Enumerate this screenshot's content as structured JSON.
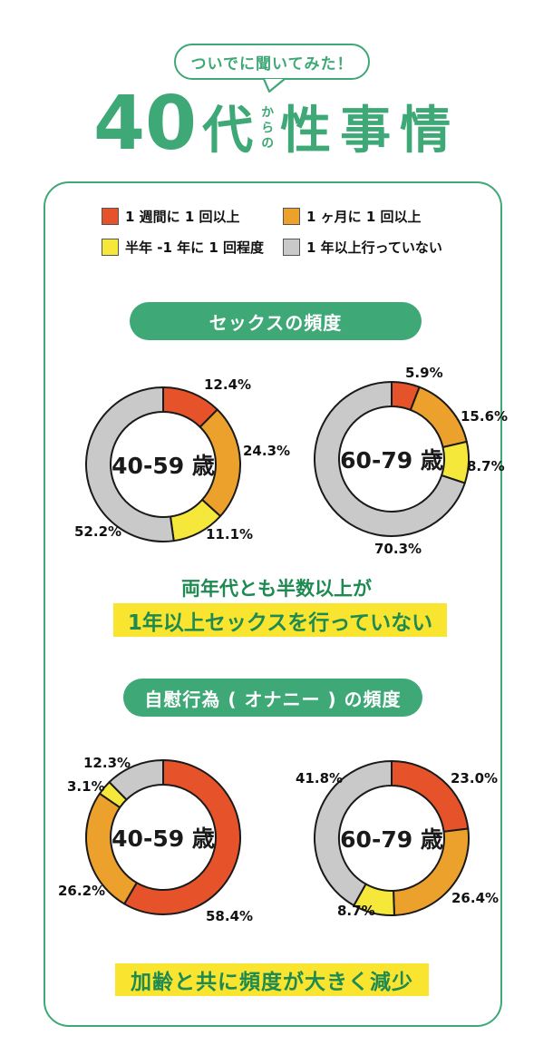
{
  "header": {
    "bubble": "ついでに聞いてみた！",
    "title": {
      "num": "40",
      "dai": "代",
      "karano": "からの",
      "main": "性事情"
    }
  },
  "legend": {
    "items": [
      {
        "label": "1 週間に 1 回以上",
        "color": "#e6532b"
      },
      {
        "label": "1 ヶ月に 1 回以上",
        "color": "#eda12d"
      },
      {
        "label": "半年 -1 年に 1 回程度",
        "color": "#f6e83b"
      },
      {
        "label": "1 年以上行っていない",
        "color": "#c9c9c9"
      }
    ]
  },
  "sections": [
    {
      "pill": "セックスの頻度"
    },
    {
      "pill": "自慰行為 ( オナニー ) の頻度"
    }
  ],
  "conclusions": [
    {
      "line1": "両年代とも半数以上が",
      "line2": "1年以上セックスを行っていない"
    },
    {
      "line1": "加齢と共に頻度が大きく減少"
    }
  ],
  "chart_data": [
    {
      "type": "pie",
      "variant": "donut",
      "title": "セックスの頻度",
      "center_label": "40-59 歳",
      "categories": [
        "1週間に1回以上",
        "1ヶ月に1回以上",
        "半年-1年に1回程度",
        "1年以上行っていない"
      ],
      "values": [
        12.4,
        24.3,
        11.1,
        52.2
      ],
      "labels": [
        "12.4%",
        "24.3%",
        "11.1%",
        "52.2%"
      ],
      "colors": [
        "#e6532b",
        "#eda12d",
        "#f6e83b",
        "#c9c9c9"
      ]
    },
    {
      "type": "pie",
      "variant": "donut",
      "title": "セックスの頻度",
      "center_label": "60-79 歳",
      "categories": [
        "1週間に1回以上",
        "1ヶ月に1回以上",
        "半年-1年に1回程度",
        "1年以上行っていない"
      ],
      "values": [
        5.9,
        15.6,
        8.7,
        70.3
      ],
      "labels": [
        "5.9%",
        "15.6%",
        "8.7%",
        "70.3%"
      ],
      "colors": [
        "#e6532b",
        "#eda12d",
        "#f6e83b",
        "#c9c9c9"
      ]
    },
    {
      "type": "pie",
      "variant": "donut",
      "title": "自慰行為 ( オナニー ) の頻度",
      "center_label": "40-59 歳",
      "categories": [
        "1週間に1回以上",
        "1ヶ月に1回以上",
        "半年-1年に1回程度",
        "1年以上行っていない"
      ],
      "values": [
        58.4,
        26.2,
        3.1,
        12.3
      ],
      "labels": [
        "58.4%",
        "26.2%",
        "3.1%",
        "12.3%"
      ],
      "colors": [
        "#e6532b",
        "#eda12d",
        "#f6e83b",
        "#c9c9c9"
      ]
    },
    {
      "type": "pie",
      "variant": "donut",
      "title": "自慰行為 ( オナニー ) の頻度",
      "center_label": "60-79 歳",
      "categories": [
        "1週間に1回以上",
        "1ヶ月に1回以上",
        "半年-1年に1回程度",
        "1年以上行っていない"
      ],
      "values": [
        23.0,
        26.4,
        8.7,
        41.8
      ],
      "labels": [
        "23.0%",
        "26.4%",
        "8.7%",
        "41.8%"
      ],
      "colors": [
        "#e6532b",
        "#eda12d",
        "#f6e83b",
        "#c9c9c9"
      ]
    }
  ],
  "colors": {
    "accent_green": "#3ea877",
    "dark_green_text": "#1e8a51",
    "highlight_yellow": "#f9e52f",
    "segment_outline": "#1a1a1a"
  }
}
